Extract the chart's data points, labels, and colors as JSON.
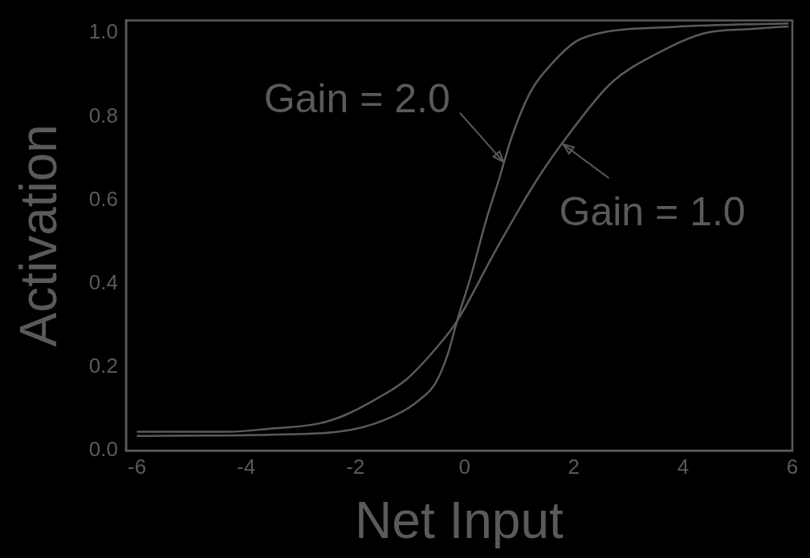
{
  "chart_data": {
    "type": "line",
    "xlabel": "Net Input",
    "ylabel": "Activation",
    "xlim": [
      -6.2,
      6
    ],
    "xticks": [
      -6,
      -4,
      -2,
      0,
      2,
      4,
      6
    ],
    "ylim": [
      0,
      1.03
    ],
    "yticks": [
      {
        "value": 0,
        "label": "0.0"
      },
      0.2,
      0.4,
      0.6,
      0.8,
      {
        "value": 1,
        "label": "1.0"
      }
    ],
    "grid": false,
    "legend": false,
    "marker": "none",
    "line_style": "solid",
    "series": [
      {
        "color": "#5a5a5a",
        "x": [
          -6,
          -3.55,
          -2.07,
          -1.26,
          -0.84,
          -0.54,
          -0.31,
          -0.14,
          0.12,
          0.39,
          0.63,
          0.86,
          1.21,
          1.62,
          2.04,
          2.48,
          3.86,
          5.93
        ],
        "values": [
          0.035,
          0.038,
          0.05,
          0.085,
          0.12,
          0.16,
          0.23,
          0.31,
          0.42,
          0.55,
          0.65,
          0.75,
          0.86,
          0.93,
          0.98,
          1.0,
          1.015,
          1.023
        ]
      },
      {
        "color": "#5a5a5a",
        "x": [
          -6,
          -4.3,
          -3.6,
          -2.66,
          -2.19,
          -1.6,
          -1.07,
          -0.49,
          -0.14,
          0.57,
          1.33,
          1.98,
          2.68,
          3.51,
          4.4,
          5.28,
          5.93
        ],
        "values": [
          0.045,
          0.045,
          0.052,
          0.065,
          0.085,
          0.125,
          0.17,
          0.25,
          0.31,
          0.48,
          0.65,
          0.77,
          0.88,
          0.95,
          1.0,
          1.01,
          1.016
        ]
      }
    ],
    "annotations": [
      {
        "text": "Gain = 2.0",
        "x": 0.72,
        "y": 0.69
      },
      {
        "text": "Gain = 1.0",
        "x": 1.79,
        "y": 0.735
      }
    ]
  }
}
